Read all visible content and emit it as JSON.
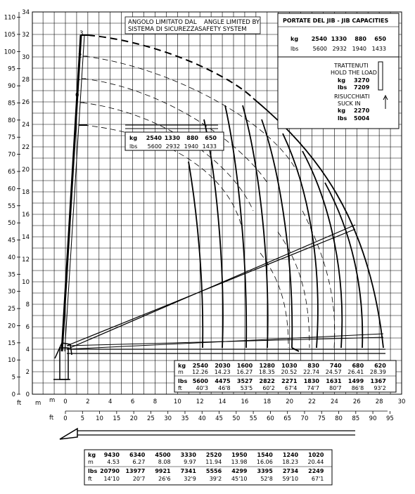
{
  "axes": {
    "ft_left": {
      "unit": "ft",
      "ticks": [
        "110",
        "105",
        "100",
        "95",
        "90",
        "85",
        "80",
        "75",
        "70",
        "65",
        "60",
        "55",
        "50",
        "45",
        "40",
        "35",
        "30",
        "25",
        "20",
        "15",
        "10",
        "5",
        "0"
      ]
    },
    "m_left": {
      "unit": "m",
      "ticks": [
        "34",
        "32",
        "30",
        "28",
        "26",
        "24",
        "22",
        "20",
        "18",
        "16",
        "14",
        "12",
        "10",
        "8",
        "6",
        "4",
        "2",
        "0"
      ]
    },
    "m_bottom": {
      "unit": "m",
      "ticks": [
        "0",
        "2",
        "4",
        "6",
        "8",
        "10",
        "12",
        "14",
        "16",
        "18",
        "20",
        "22",
        "24",
        "26",
        "28",
        "30"
      ]
    },
    "ft_bottom": {
      "unit": "ft",
      "ticks": [
        "0",
        "5",
        "10",
        "15",
        "20",
        "25",
        "30",
        "35",
        "40",
        "45",
        "50",
        "55",
        "60",
        "65",
        "70",
        "75",
        "80",
        "85",
        "90",
        "95"
      ]
    }
  },
  "notice": {
    "it_line1": "ANGOLO LIMITATO DAL",
    "it_line2": "SISTEMA DI SICUREZZA",
    "en_line1": "ANGLE LIMITED BY",
    "en_line2": "SAFETY SYSTEM"
  },
  "jib_position_labels": [
    "3",
    "2",
    "1",
    "0"
  ],
  "jib_box": {
    "title": "PORTATE DEL JIB  -  JIB CAPACITIES",
    "kg_label": "kg",
    "lbs_label": "lbs",
    "kg": [
      "2540",
      "1330",
      "880",
      "650"
    ],
    "lbs": [
      "5600",
      "2932",
      "1940",
      "1433"
    ],
    "hold_it": "TRATTENUTI",
    "hold_en": "HOLD THE LOAD",
    "hold_kg": "3270",
    "hold_lbs": "7209",
    "suck_it": "RISUCCHIATI",
    "suck_en": "SUCK IN",
    "suck_kg": "2270",
    "suck_lbs": "5004"
  },
  "jib_table_mid": {
    "kg_label": "kg",
    "lbs_label": "lbs",
    "kg": [
      "2540",
      "1330",
      "880",
      "650"
    ],
    "lbs": [
      "5600",
      "2932",
      "1940",
      "1433"
    ]
  },
  "main_table": {
    "row_labels": [
      "kg",
      "m",
      "lbs",
      "ft"
    ],
    "kg": [
      "2540",
      "2030",
      "1600",
      "1280",
      "1030",
      "830",
      "740",
      "680",
      "620"
    ],
    "m": [
      "12.26",
      "14.23",
      "16.27",
      "18.35",
      "20.52",
      "22.74",
      "24.57",
      "26.41",
      "28.39"
    ],
    "lbs": [
      "5600",
      "4475",
      "3527",
      "2822",
      "2271",
      "1830",
      "1631",
      "1499",
      "1367"
    ],
    "ft": [
      "40'3",
      "46'8",
      "53'5",
      "60'2",
      "67'4",
      "74'7",
      "80'7",
      "86'8",
      "93'2"
    ]
  },
  "bottom_table": {
    "row_labels": [
      "kg",
      "m",
      "lbs",
      "ft"
    ],
    "kg": [
      "9430",
      "6340",
      "4500",
      "3330",
      "2520",
      "1950",
      "1540",
      "1240",
      "1020"
    ],
    "m": [
      "4.53",
      "6.27",
      "8.08",
      "9.97",
      "11.94",
      "13.98",
      "16.06",
      "18.23",
      "20.44"
    ],
    "lbs": [
      "20790",
      "13977",
      "9921",
      "7341",
      "5556",
      "4299",
      "3395",
      "2734",
      "2249"
    ],
    "ft": [
      "14'10",
      "20'7",
      "26'6",
      "32'9",
      "39'2",
      "45'10",
      "52'8",
      "59'10",
      "67'1"
    ]
  }
}
